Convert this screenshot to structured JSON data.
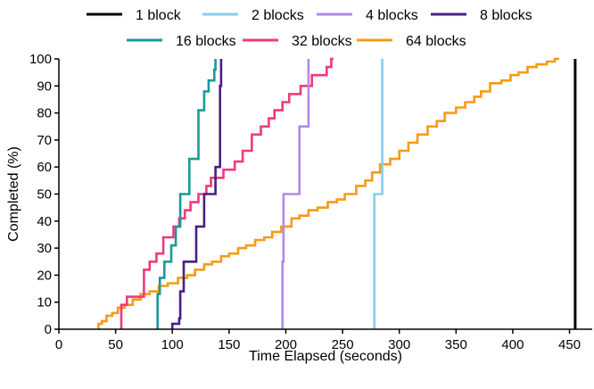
{
  "chart_data": {
    "type": "line",
    "title": "",
    "xlabel": "Time Elapsed (seconds)",
    "ylabel": "Completed (%)",
    "xlim": [
      0,
      470
    ],
    "ylim": [
      0,
      100
    ],
    "xticks": [
      0,
      50,
      100,
      150,
      200,
      250,
      300,
      350,
      400,
      450
    ],
    "yticks": [
      0,
      10,
      20,
      30,
      40,
      50,
      60,
      70,
      80,
      90,
      100
    ],
    "grid": false,
    "legend_position": "top",
    "step": true,
    "series": [
      {
        "name": "1 block",
        "color": "#000000",
        "x": [
          455,
          455
        ],
        "y": [
          0,
          100
        ]
      },
      {
        "name": "2 blocks",
        "color": "#87CEEB",
        "x": [
          278,
          278,
          285,
          285
        ],
        "y": [
          0,
          50,
          50,
          100
        ]
      },
      {
        "name": "4 blocks",
        "color": "#B388E8",
        "x": [
          197,
          197,
          198,
          198,
          212,
          212,
          220,
          220
        ],
        "y": [
          0,
          25,
          25,
          50,
          50,
          75,
          75,
          100
        ]
      },
      {
        "name": "8 blocks",
        "color": "#4B1D84",
        "x": [
          100,
          100,
          106,
          106,
          107,
          107,
          110,
          110,
          121,
          121,
          128,
          128,
          138,
          138,
          142,
          142,
          143,
          143
        ],
        "y": [
          0,
          2,
          2,
          4,
          4,
          14,
          14,
          25,
          25,
          38,
          38,
          50,
          50,
          60,
          60,
          90,
          90,
          100
        ]
      },
      {
        "name": "16 blocks",
        "color": "#1A9A99",
        "x": [
          87,
          87,
          89,
          89,
          93,
          93,
          99,
          99,
          103,
          103,
          107,
          107,
          115,
          115,
          123,
          123,
          128,
          128,
          132,
          132,
          137,
          137,
          138,
          138
        ],
        "y": [
          0,
          13,
          13,
          19,
          19,
          25,
          25,
          31,
          31,
          38,
          38,
          50,
          50,
          63,
          63,
          81,
          81,
          88,
          88,
          92,
          92,
          96,
          96,
          100
        ]
      },
      {
        "name": "32 blocks",
        "color": "#EE3A7C",
        "x": [
          55,
          55,
          60,
          60,
          75,
          75,
          80,
          80,
          86,
          86,
          92,
          92,
          101,
          101,
          106,
          106,
          111,
          111,
          116,
          116,
          123,
          123,
          130,
          130,
          134,
          134,
          145,
          145,
          155,
          155,
          162,
          162,
          170,
          170,
          178,
          178,
          185,
          185,
          190,
          190,
          197,
          197,
          203,
          203,
          213,
          213,
          223,
          223,
          236,
          236,
          240,
          240,
          242
        ],
        "y": [
          0,
          9,
          9,
          12,
          12,
          22,
          22,
          25,
          25,
          28,
          28,
          34,
          34,
          38,
          38,
          41,
          41,
          44,
          44,
          47,
          47,
          50,
          50,
          53,
          53,
          56,
          56,
          59,
          59,
          62,
          62,
          66,
          66,
          72,
          72,
          75,
          75,
          78,
          78,
          81,
          81,
          84,
          84,
          87,
          87,
          90,
          90,
          94,
          94,
          97,
          97,
          100,
          100
        ]
      },
      {
        "name": "64 blocks",
        "color": "#F59B16",
        "x": [
          35,
          35,
          38,
          38,
          42,
          42,
          47,
          47,
          52,
          52,
          58,
          58,
          65,
          65,
          72,
          72,
          80,
          80,
          88,
          88,
          96,
          96,
          105,
          105,
          113,
          113,
          120,
          120,
          128,
          128,
          135,
          135,
          143,
          143,
          150,
          150,
          158,
          158,
          165,
          165,
          173,
          173,
          181,
          181,
          188,
          188,
          196,
          196,
          205,
          205,
          212,
          212,
          220,
          220,
          228,
          228,
          237,
          237,
          245,
          245,
          252,
          252,
          262,
          262,
          270,
          270,
          276,
          276,
          283,
          283,
          292,
          292,
          300,
          300,
          308,
          308,
          316,
          316,
          325,
          325,
          333,
          333,
          340,
          340,
          350,
          350,
          358,
          358,
          366,
          366,
          372,
          372,
          380,
          380,
          390,
          390,
          398,
          398,
          405,
          405,
          413,
          413,
          421,
          421,
          430,
          430,
          437,
          437,
          441
        ],
        "y": [
          0,
          2,
          2,
          3,
          3,
          5,
          5,
          6,
          6,
          8,
          8,
          9,
          9,
          11,
          11,
          13,
          13,
          14,
          14,
          16,
          16,
          17,
          17,
          19,
          19,
          20,
          20,
          22,
          22,
          24,
          24,
          25,
          25,
          27,
          27,
          28,
          28,
          30,
          30,
          31,
          31,
          33,
          33,
          34,
          34,
          36,
          36,
          38,
          38,
          41,
          41,
          42,
          42,
          44,
          44,
          45,
          45,
          47,
          47,
          48,
          48,
          50,
          50,
          53,
          53,
          55,
          55,
          58,
          58,
          61,
          61,
          63,
          63,
          66,
          66,
          69,
          69,
          72,
          72,
          75,
          75,
          77,
          77,
          80,
          80,
          82,
          82,
          84,
          84,
          86,
          86,
          88,
          88,
          91,
          91,
          92,
          92,
          94,
          94,
          95,
          95,
          97,
          97,
          98,
          98,
          99,
          99,
          100,
          100
        ]
      }
    ]
  }
}
